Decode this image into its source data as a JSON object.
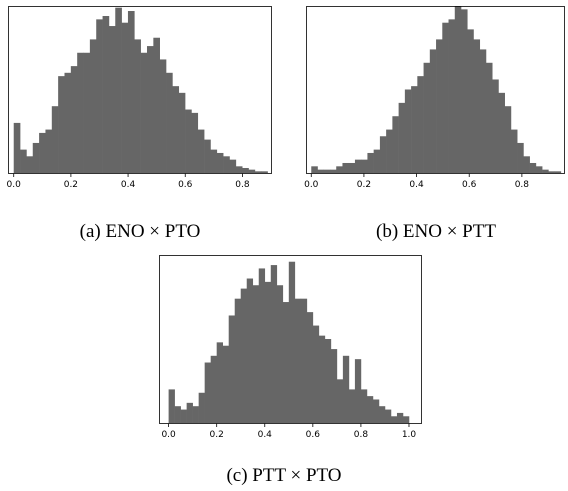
{
  "figure": {
    "captions": [
      "(a) ENO × PTO",
      "(b) ENO × PTT",
      "(c) PTT × PTO"
    ]
  },
  "chart_data": [
    {
      "type": "bar",
      "subtype": "histogram",
      "caption": "(a) ENO × PTO",
      "xlim": [
        -0.02,
        0.9
      ],
      "ylim": [
        0,
        100
      ],
      "xticks": [
        "0.0",
        "0.2",
        "0.4",
        "0.6",
        "0.8"
      ],
      "xtick_values": [
        0.0,
        0.2,
        0.4,
        0.6,
        0.8
      ],
      "bin_start": 0.0,
      "bin_width": 0.0222,
      "values": [
        30,
        14,
        10,
        18,
        24,
        26,
        40,
        58,
        60,
        64,
        72,
        72,
        80,
        92,
        94,
        88,
        99,
        90,
        97,
        80,
        72,
        76,
        81,
        68,
        60,
        52,
        48,
        38,
        36,
        26,
        20,
        14,
        12,
        10,
        8,
        4,
        3,
        2,
        1,
        1
      ],
      "grid": false,
      "bar_color": "#666666"
    },
    {
      "type": "bar",
      "subtype": "histogram",
      "caption": "(b) ENO × PTT",
      "xlim": [
        -0.02,
        0.96
      ],
      "ylim": [
        0,
        100
      ],
      "xticks": [
        "0.0",
        "0.2",
        "0.4",
        "0.6",
        "0.8"
      ],
      "xtick_values": [
        0.0,
        0.2,
        0.4,
        0.6,
        0.8
      ],
      "bin_start": 0.0,
      "bin_width": 0.0237,
      "values": [
        4,
        2,
        2,
        2,
        4,
        6,
        6,
        8,
        8,
        12,
        14,
        22,
        26,
        34,
        42,
        50,
        52,
        58,
        66,
        74,
        80,
        90,
        92,
        100,
        98,
        86,
        80,
        74,
        66,
        56,
        48,
        40,
        26,
        18,
        10,
        6,
        4,
        2,
        1,
        1
      ],
      "grid": false,
      "bar_color": "#666666"
    },
    {
      "type": "bar",
      "subtype": "histogram",
      "caption": "(c) PTT × PTO",
      "xlim": [
        -0.04,
        1.05
      ],
      "ylim": [
        0,
        100
      ],
      "xticks": [
        "0.0",
        "0.2",
        "0.4",
        "0.6",
        "0.8",
        "1.0"
      ],
      "xtick_values": [
        0.0,
        0.2,
        0.4,
        0.6,
        0.8,
        1.0
      ],
      "bin_start": 0.0,
      "bin_width": 0.025,
      "values": [
        20,
        10,
        8,
        12,
        10,
        18,
        36,
        40,
        48,
        46,
        64,
        74,
        80,
        86,
        82,
        92,
        84,
        94,
        82,
        72,
        96,
        74,
        74,
        66,
        58,
        52,
        50,
        44,
        26,
        40,
        20,
        38,
        20,
        16,
        14,
        10,
        8,
        4,
        6,
        4
      ],
      "grid": false,
      "bar_color": "#666666"
    }
  ]
}
